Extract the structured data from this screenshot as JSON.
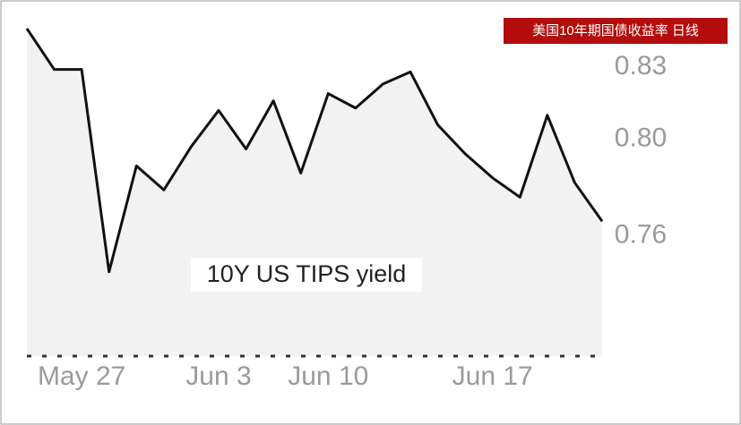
{
  "chart_data": {
    "type": "line",
    "badge": "美国10年期国债收益率 日线",
    "annotation": "10Y US TIPS yield",
    "categories": [
      null,
      null,
      "May 27",
      null,
      null,
      null,
      null,
      "Jun 3",
      null,
      null,
      null,
      "Jun 10",
      null,
      null,
      null,
      null,
      null,
      "Jun 17",
      null,
      null,
      null,
      null
    ],
    "values": [
      0.846,
      0.829,
      0.829,
      0.745,
      0.789,
      0.779,
      0.797,
      0.812,
      0.796,
      0.816,
      0.786,
      0.819,
      0.813,
      0.823,
      0.828,
      0.806,
      0.794,
      0.784,
      0.776,
      0.81,
      0.782,
      0.766
    ],
    "color": "#111111",
    "area_color": "#f2f2f2",
    "ylim": [
      0.71,
      0.856
    ],
    "yticks": [
      0.76,
      {
        "value": 0.8,
        "label": "0.80"
      },
      0.83
    ]
  }
}
